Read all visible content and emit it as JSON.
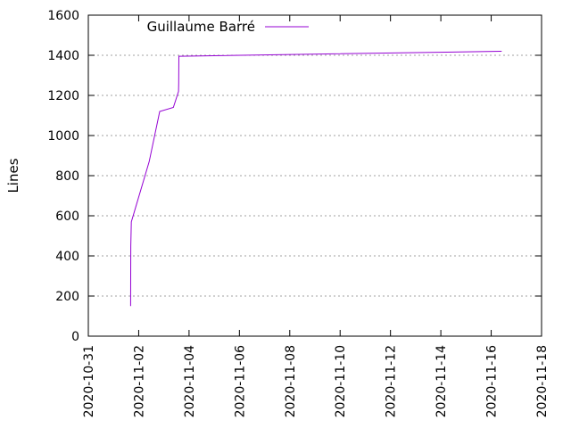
{
  "chart_data": {
    "type": "line",
    "title": "",
    "xlabel": "",
    "ylabel": "Lines",
    "x_axis_type": "date",
    "xlim": [
      "2020-10-31",
      "2020-11-18"
    ],
    "ylim": [
      0,
      1600
    ],
    "x_ticks": [
      "2020-10-31",
      "2020-11-02",
      "2020-11-04",
      "2020-11-06",
      "2020-11-08",
      "2020-11-10",
      "2020-11-12",
      "2020-11-14",
      "2020-11-16",
      "2020-11-18"
    ],
    "y_ticks": [
      0,
      200,
      400,
      600,
      800,
      1000,
      1200,
      1400,
      1600
    ],
    "grid": "horizontal dotted lines at y ticks",
    "legend": "top-left inside plot",
    "series": [
      {
        "name": "Guillaume Barré",
        "color": "#9400d3",
        "points": [
          {
            "x": "2020-11-01T16:20",
            "y": 150
          },
          {
            "x": "2020-11-01T16:30",
            "y": 450
          },
          {
            "x": "2020-11-01T17:00",
            "y": 570
          },
          {
            "x": "2020-11-02T10:00",
            "y": 870
          },
          {
            "x": "2020-11-02T20:00",
            "y": 1120
          },
          {
            "x": "2020-11-03T09:00",
            "y": 1140
          },
          {
            "x": "2020-11-03T14:00",
            "y": 1220
          },
          {
            "x": "2020-11-03T14:10",
            "y": 1260
          },
          {
            "x": "2020-11-03T14:20",
            "y": 1395
          },
          {
            "x": "2020-11-16T10:00",
            "y": 1420
          }
        ]
      }
    ]
  }
}
